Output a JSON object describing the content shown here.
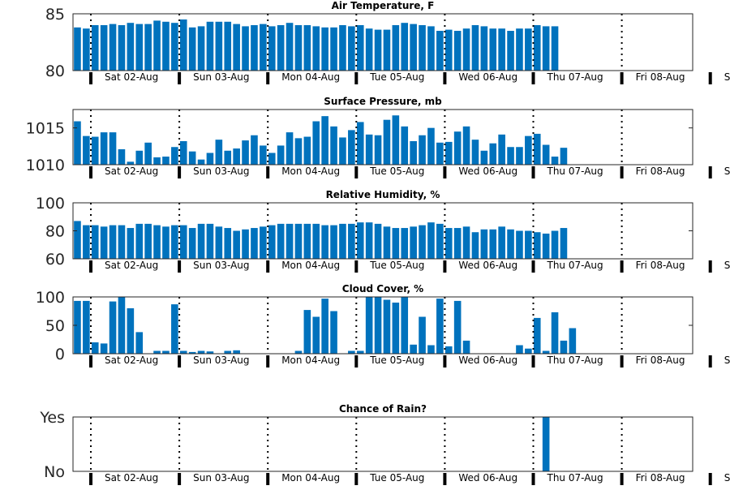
{
  "chart_data": [
    {
      "type": "bar",
      "title": "Air Temperature, F",
      "ylim": [
        80,
        85
      ],
      "yticks": [
        {
          "value": 80,
          "label": "80"
        },
        {
          "value": 85,
          "label": "85"
        }
      ],
      "day_labels": [
        "Sat 02-Aug",
        "Sun 03-Aug",
        "Mon 04-Aug",
        "Tue 05-Aug",
        "Wed 06-Aug",
        "Thu 07-Aug",
        "Fri 08-Aug",
        "S"
      ],
      "values": [
        83.8,
        83.7,
        84.0,
        84.0,
        84.1,
        84.0,
        84.2,
        84.1,
        84.1,
        84.4,
        84.3,
        84.2,
        84.5,
        83.8,
        83.9,
        84.3,
        84.3,
        84.3,
        84.1,
        83.9,
        84.0,
        84.1,
        83.9,
        84.0,
        84.2,
        84.0,
        84.0,
        83.9,
        83.8,
        83.8,
        84.0,
        83.9,
        84.0,
        83.7,
        83.6,
        83.6,
        84.0,
        84.2,
        84.1,
        84.0,
        83.9,
        83.5,
        83.6,
        83.5,
        83.7,
        84.0,
        83.9,
        83.7,
        83.7,
        83.5,
        83.7,
        83.7,
        84.0,
        83.9,
        83.9
      ]
    },
    {
      "type": "bar",
      "title": "Surface Pressure, mb",
      "ylim": [
        1010,
        1017.5
      ],
      "yticks": [
        {
          "value": 1010,
          "label": "1010"
        },
        {
          "value": 1015,
          "label": "1015"
        }
      ],
      "day_labels": [
        "Sat 02-Aug",
        "Sun 03-Aug",
        "Mon 04-Aug",
        "Tue 05-Aug",
        "Wed 06-Aug",
        "Thu 07-Aug",
        "Fri 08-Aug",
        "S"
      ],
      "values": [
        1015.9,
        1013.9,
        1013.8,
        1014.4,
        1014.4,
        1012.1,
        1010.4,
        1011.9,
        1013.0,
        1011.0,
        1011.1,
        1012.4,
        1013.2,
        1011.8,
        1010.7,
        1011.6,
        1013.4,
        1011.9,
        1012.2,
        1013.3,
        1014.0,
        1012.6,
        1011.6,
        1012.6,
        1014.4,
        1013.6,
        1013.8,
        1015.9,
        1016.6,
        1015.2,
        1013.7,
        1014.7,
        1015.8,
        1014.1,
        1014.0,
        1016.1,
        1016.7,
        1015.2,
        1013.2,
        1014.0,
        1015.0,
        1013.0,
        1013.1,
        1014.5,
        1015.2,
        1013.4,
        1011.9,
        1012.9,
        1014.1,
        1012.4,
        1012.4,
        1013.9,
        1014.2,
        1012.7,
        1011.1,
        1012.3
      ]
    },
    {
      "type": "bar",
      "title": "Relative Humidity, %",
      "ylim": [
        60,
        100
      ],
      "yticks": [
        {
          "value": 60,
          "label": "60"
        },
        {
          "value": 80,
          "label": "80"
        },
        {
          "value": 100,
          "label": "100"
        }
      ],
      "day_labels": [
        "Sat 02-Aug",
        "Sun 03-Aug",
        "Mon 04-Aug",
        "Tue 05-Aug",
        "Wed 06-Aug",
        "Thu 07-Aug",
        "Fri 08-Aug",
        "S"
      ],
      "values": [
        87,
        84,
        84,
        83,
        84,
        84,
        82,
        85,
        85,
        84,
        83,
        84,
        84,
        82,
        85,
        85,
        83,
        82,
        80,
        81,
        82,
        83,
        84,
        85,
        85,
        85,
        85,
        85,
        84,
        84,
        85,
        85,
        86,
        86,
        85,
        83,
        82,
        82,
        83,
        84,
        86,
        85,
        82,
        82,
        83,
        79,
        81,
        81,
        83,
        81,
        80,
        80,
        79,
        78,
        80,
        82
      ]
    },
    {
      "type": "bar",
      "title": "Cloud Cover, %",
      "ylim": [
        0,
        100
      ],
      "yticks": [
        {
          "value": 0,
          "label": "0"
        },
        {
          "value": 50,
          "label": "50"
        },
        {
          "value": 100,
          "label": "100"
        }
      ],
      "day_labels": [
        "Sat 02-Aug",
        "Sun 03-Aug",
        "Mon 04-Aug",
        "Tue 05-Aug",
        "Wed 06-Aug",
        "Thu 07-Aug",
        "Fri 08-Aug",
        "S"
      ],
      "values": [
        93,
        93,
        20,
        18,
        92,
        100,
        80,
        38,
        0,
        5,
        5,
        87,
        5,
        3,
        5,
        4,
        0,
        5,
        6,
        0,
        0,
        0,
        0,
        0,
        0,
        5,
        77,
        65,
        97,
        75,
        0,
        5,
        5,
        100,
        100,
        95,
        90,
        100,
        16,
        65,
        15,
        97,
        13,
        93,
        23,
        0,
        0,
        0,
        0,
        0,
        15,
        9,
        63,
        5,
        73,
        23,
        45
      ]
    },
    {
      "type": "bar",
      "title": "Chance of Rain?",
      "ylim": [
        0,
        1
      ],
      "yticks": [
        {
          "value": 0,
          "label": "No"
        },
        {
          "value": 1,
          "label": "Yes"
        }
      ],
      "day_labels": [
        "Sat 02-Aug",
        "Sun 03-Aug",
        "Mon 04-Aug",
        "Tue 05-Aug",
        "Wed 06-Aug",
        "Thu 07-Aug",
        "Fri 08-Aug",
        "S"
      ],
      "values": [
        0,
        0,
        0,
        0,
        0,
        0,
        0,
        0,
        0,
        0,
        0,
        0,
        0,
        0,
        0,
        0,
        0,
        0,
        0,
        0,
        0,
        0,
        0,
        0,
        0,
        0,
        0,
        0,
        0,
        0,
        0,
        0,
        0,
        0,
        0,
        0,
        0,
        0,
        0,
        0,
        0,
        0,
        0,
        0,
        0,
        0,
        0,
        0,
        0,
        0,
        0,
        0,
        0,
        1,
        0,
        0,
        0
      ]
    }
  ]
}
